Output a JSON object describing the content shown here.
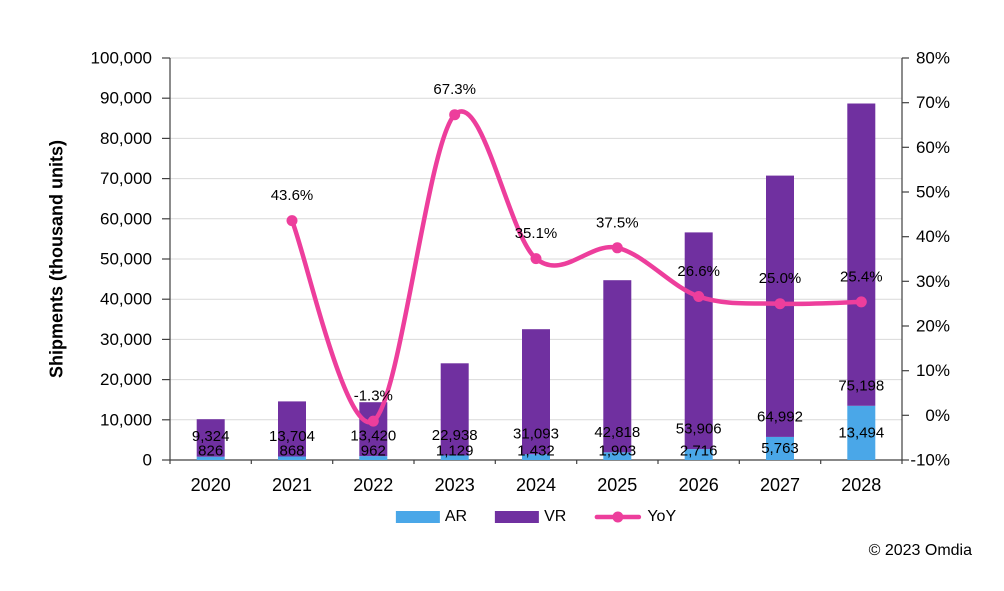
{
  "chart_data": {
    "type": "combo-stacked-bar-line",
    "categories": [
      "2020",
      "2021",
      "2022",
      "2023",
      "2024",
      "2025",
      "2026",
      "2027",
      "2028"
    ],
    "series": [
      {
        "name": "AR",
        "chart": "stacked-bar",
        "axis": "left",
        "color": "#4AA7E8",
        "values": [
          826,
          868,
          962,
          1129,
          1432,
          1903,
          2716,
          5763,
          13494
        ],
        "value_labels": [
          "826",
          "868",
          "962",
          "1,129",
          "1,432",
          "1,903",
          "2,716",
          "5,763",
          "13,494"
        ]
      },
      {
        "name": "VR",
        "chart": "stacked-bar",
        "axis": "left",
        "color": "#7030A0",
        "values": [
          9324,
          13704,
          13420,
          22938,
          31093,
          42818,
          53906,
          64992,
          75198
        ],
        "value_labels": [
          "9,324",
          "13,704",
          "13,420",
          "22,938",
          "31,093",
          "42,818",
          "53,906",
          "64,992",
          "75,198"
        ]
      },
      {
        "name": "YoY",
        "chart": "line-smooth",
        "axis": "right",
        "color": "#ED3E9C",
        "values": [
          null,
          43.6,
          -1.3,
          67.3,
          35.1,
          37.5,
          26.6,
          25.0,
          25.4
        ],
        "value_labels": [
          "",
          "43.6%",
          "-1.3%",
          "67.3%",
          "35.1%",
          "37.5%",
          "26.6%",
          "25.0%",
          "25.4%"
        ]
      }
    ],
    "left_axis": {
      "title": "Shipments (thousand units)",
      "min": 0,
      "max": 100000,
      "step": 10000,
      "tick_labels": [
        "0",
        "10,000",
        "20,000",
        "30,000",
        "40,000",
        "50,000",
        "60,000",
        "70,000",
        "80,000",
        "90,000",
        "100,000"
      ]
    },
    "right_axis": {
      "min": -10,
      "max": 80,
      "step": 10,
      "tick_labels": [
        "-10%",
        "0%",
        "10%",
        "20%",
        "30%",
        "40%",
        "50%",
        "60%",
        "70%",
        "80%"
      ]
    },
    "grid": true,
    "legend_position": "bottom"
  },
  "legend": {
    "items": [
      "AR",
      "VR",
      "YoY"
    ]
  },
  "footer": {
    "copyright": "© 2023 Omdia"
  },
  "colors": {
    "background": "#FFFFFF",
    "gridline": "#D9D9D9",
    "axis_line": "#404040",
    "text": "#000000",
    "ar_blue": "#4AA7E8",
    "vr_purple": "#7030A0",
    "yoy_pink": "#ED3E9C"
  }
}
